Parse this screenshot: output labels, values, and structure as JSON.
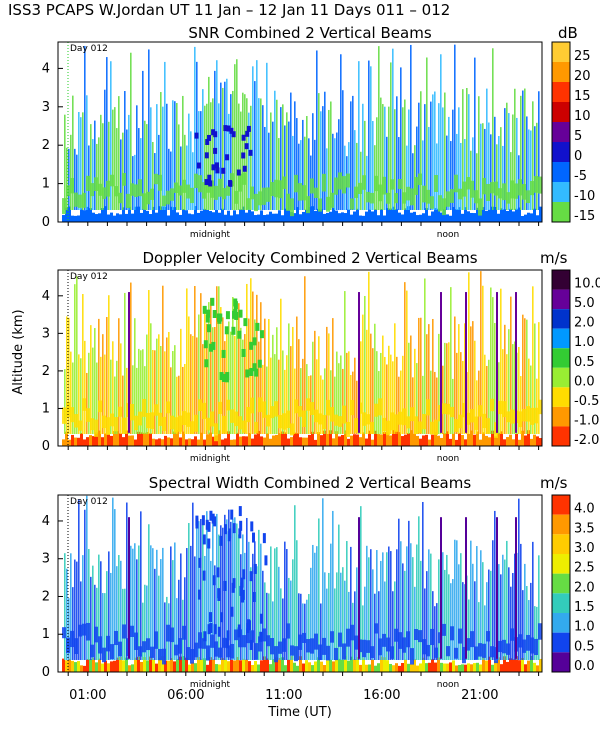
{
  "header": "ISS3 PCAPS W.Jordan UT  11 Jan – 12 Jan 11 Days 011 – 012",
  "ylabel": "Altitude (km)",
  "xlabel": "Time (UT)",
  "day_marker": "Day 012",
  "markers": {
    "midnight": "midnight",
    "noon": "noon"
  },
  "time_ticks": [
    "01:00",
    "06:00",
    "11:00",
    "16:00",
    "21:00"
  ],
  "chart_data": [
    {
      "type": "heatmap",
      "title": "SNR Combined 2 Vertical Beams",
      "unit": "dB",
      "xlabel": "Time (UT)",
      "ylabel": "Altitude (km)",
      "ylim": [
        0,
        4.5
      ],
      "yticks": [
        "0",
        "1",
        "2",
        "3",
        "4"
      ],
      "colorbar": [
        "25",
        "20",
        "15",
        "10",
        "5",
        "0",
        "-5",
        "-10",
        "-15"
      ],
      "colors": [
        "#ffcc33",
        "#ff9900",
        "#ff3300",
        "#cc0000",
        "#660099",
        "#1111cc",
        "#0066ff",
        "#33bbff",
        "#66dd44"
      ]
    },
    {
      "type": "heatmap",
      "title": "Doppler Velocity Combined 2 Vertical Beams",
      "unit": "m/s",
      "xlabel": "Time (UT)",
      "ylabel": "Altitude (km)",
      "ylim": [
        0,
        4.5
      ],
      "yticks": [
        "0",
        "1",
        "2",
        "3",
        "4"
      ],
      "colorbar": [
        "10.0",
        "5.0",
        "2.0",
        "1.0",
        "0.5",
        "0.0",
        "-0.5",
        "-1.0",
        "-2.0"
      ],
      "colors": [
        "#330033",
        "#660099",
        "#0033cc",
        "#0099ff",
        "#33cc33",
        "#99ee33",
        "#ffdd00",
        "#ff9900",
        "#ff3300"
      ]
    },
    {
      "type": "heatmap",
      "title": "Spectral Width Combined 2 Vertical Beams",
      "unit": "m/s",
      "xlabel": "Time (UT)",
      "ylabel": "Altitude (km)",
      "ylim": [
        0,
        4.5
      ],
      "yticks": [
        "0",
        "1",
        "2",
        "3",
        "4"
      ],
      "colorbar": [
        "4.0",
        "3.5",
        "3.0",
        "2.5",
        "2.0",
        "1.5",
        "1.0",
        "0.5",
        "0.0"
      ],
      "colors": [
        "#ff3300",
        "#ff9900",
        "#ffcc00",
        "#eeee00",
        "#66dd44",
        "#33ccbb",
        "#33aaee",
        "#1144ee",
        "#550099"
      ]
    }
  ]
}
